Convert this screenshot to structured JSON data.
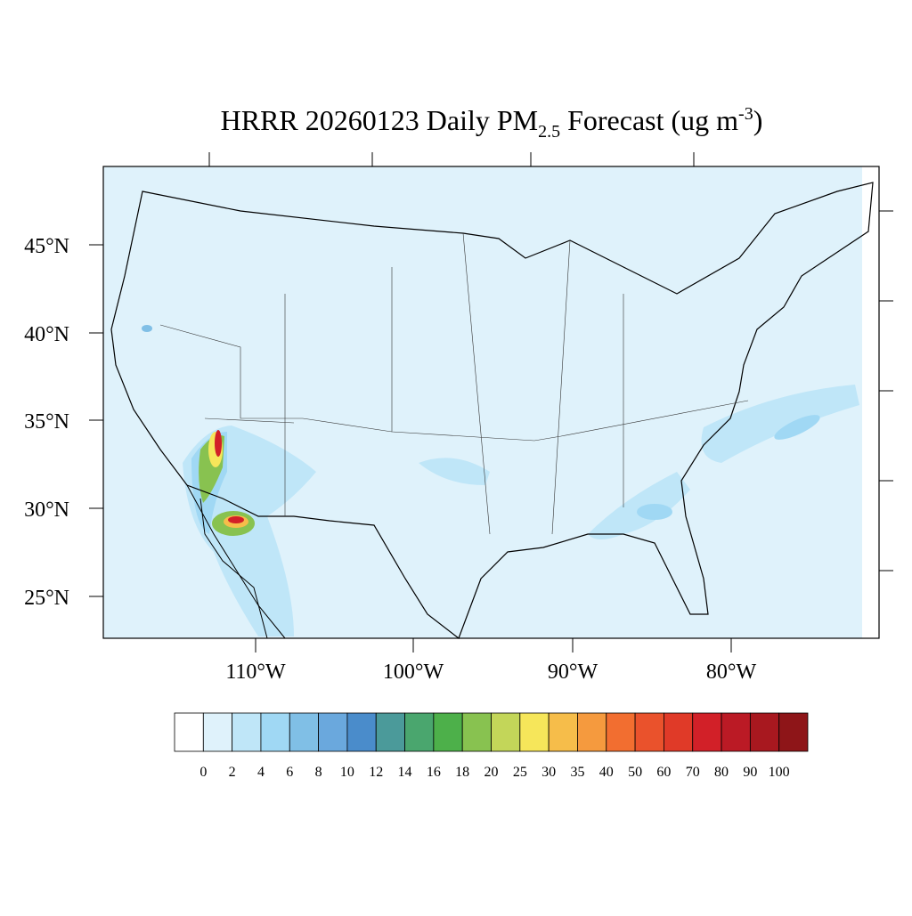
{
  "title": {
    "prefix": "HRRR 20260123 Daily PM",
    "sub": "2.5",
    "middle": " Forecast (ug m",
    "sup": "-3",
    "suffix": ")"
  },
  "lat_labels": [
    "45°N",
    "40°N",
    "35°N",
    "30°N",
    "25°N"
  ],
  "lon_labels": [
    "110°W",
    "100°W",
    "90°W",
    "80°W"
  ],
  "colorbar": {
    "levels": [
      0,
      2,
      4,
      6,
      8,
      10,
      12,
      14,
      16,
      18,
      20,
      25,
      30,
      35,
      40,
      50,
      60,
      70,
      80,
      90,
      100
    ],
    "colors": [
      "#ffffff",
      "#dff2fb",
      "#bfe6f8",
      "#a0d8f4",
      "#80bfe6",
      "#6aa8dd",
      "#4a8ccb",
      "#4b9a9a",
      "#4aa66e",
      "#4db04a",
      "#88c250",
      "#c3d659",
      "#f6e65a",
      "#f6bd4a",
      "#f59a3e",
      "#f26e30",
      "#ea522c",
      "#e03a28",
      "#d22028",
      "#bb1a25",
      "#a8181f",
      "#8e1518"
    ]
  }
}
